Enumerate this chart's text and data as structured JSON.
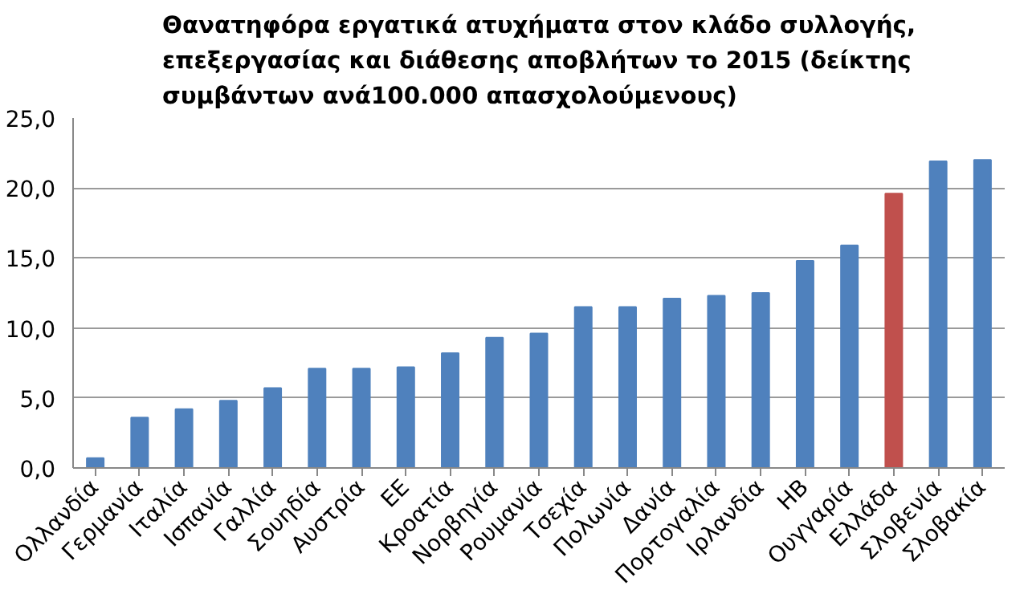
{
  "chart_data": {
    "type": "bar",
    "title": "Θανατηφόρα εργατικά ατυχήματα στον κλάδο συλλογής,\nεπεξεργασίας και διάθεσης αποβλήτων το 2015 (δείκτης\nσυμβάντων ανά100.000 απασχολούμενους)",
    "categories": [
      "Ολλανδία",
      "Γερμανία",
      "Ιταλία",
      "Ισπανία",
      "Γαλλία",
      "Σουηδία",
      "Αυστρία",
      "ΕΕ",
      "Κροατία",
      "Νορβηγία",
      "Ρουμανία",
      "Τσεχία",
      "Πολωνία",
      "Δανία",
      "Πορτογαλία",
      "Ιρλανδία",
      "ΗΒ",
      "Ουγγαρία",
      "Ελλάδα",
      "Σλοβενία",
      "Σλοβακία"
    ],
    "values": [
      0.7,
      3.6,
      4.2,
      4.8,
      5.7,
      7.1,
      7.1,
      7.2,
      8.2,
      9.3,
      9.6,
      11.5,
      11.5,
      12.1,
      12.3,
      12.5,
      14.8,
      15.9,
      19.6,
      21.9,
      22.0
    ],
    "colors": [
      "#4f81bd",
      "#4f81bd",
      "#4f81bd",
      "#4f81bd",
      "#4f81bd",
      "#4f81bd",
      "#4f81bd",
      "#4f81bd",
      "#4f81bd",
      "#4f81bd",
      "#4f81bd",
      "#4f81bd",
      "#4f81bd",
      "#4f81bd",
      "#4f81bd",
      "#4f81bd",
      "#4f81bd",
      "#4f81bd",
      "#c0504d",
      "#4f81bd",
      "#4f81bd"
    ],
    "ylim": [
      0,
      25
    ],
    "yticks": [
      {
        "value": 0,
        "label": "0,0"
      },
      {
        "value": 5,
        "label": "5,0"
      },
      {
        "value": 10,
        "label": "10,0"
      },
      {
        "value": 15,
        "label": "15,0"
      },
      {
        "value": 20,
        "label": "20,0"
      },
      {
        "value": 25,
        "label": "25,0"
      }
    ],
    "grid": "y"
  }
}
